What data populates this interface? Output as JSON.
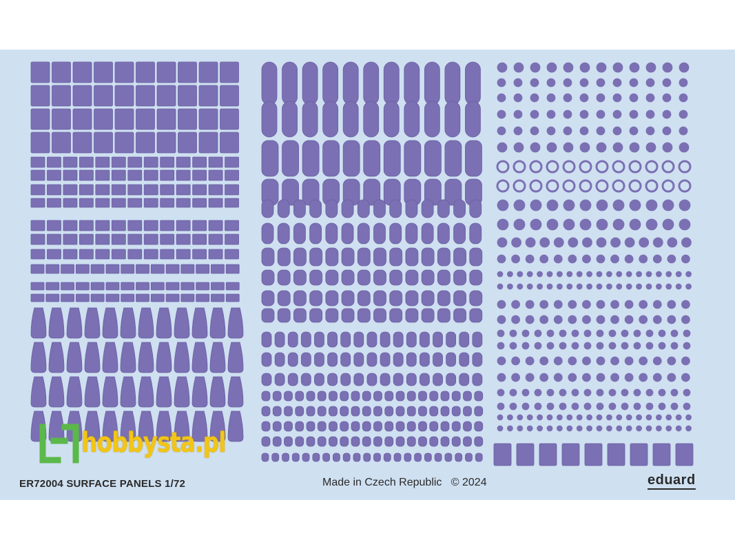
{
  "sheet": {
    "code_label": "ER72004 SURFACE PANELS 1/72",
    "made_in": "Made in Czech Republic",
    "copyright": "© 2024",
    "brand": "eduard",
    "watermark": "hobbysta.pl"
  },
  "colors": {
    "sheet_background": "#cfe0f1",
    "decal_fill": "#7b70b3",
    "decal_edge": "#6a5fa3",
    "watermark_yellow": "#f2c516",
    "watermark_green": "#5bb84a"
  },
  "icons": {
    "watermark_logo": "hobbysta-logo-icon"
  }
}
